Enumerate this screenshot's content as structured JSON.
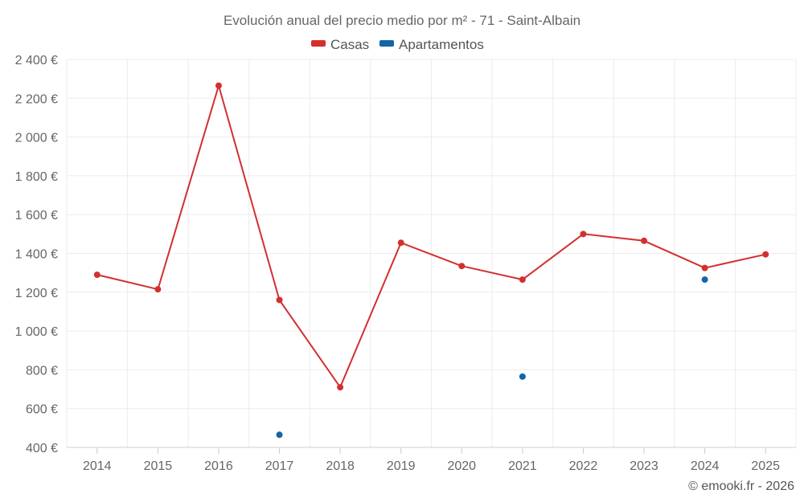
{
  "chart_data": {
    "type": "line",
    "title": "Evolución anual del precio medio por m² - 71 - Saint-Albain",
    "xlabel": "",
    "ylabel": "",
    "categories": [
      "2014",
      "2015",
      "2016",
      "2017",
      "2018",
      "2019",
      "2020",
      "2021",
      "2022",
      "2023",
      "2024",
      "2025"
    ],
    "ylim": [
      400,
      2400
    ],
    "yticks": [
      400,
      600,
      800,
      1000,
      1200,
      1400,
      1600,
      1800,
      2000,
      2200,
      2400
    ],
    "ytick_labels": [
      "400 €",
      "600 €",
      "800 €",
      "1 000 €",
      "1 200 €",
      "1 400 €",
      "1 600 €",
      "1 800 €",
      "2 000 €",
      "2 200 €",
      "2 400 €"
    ],
    "grid": true,
    "legend_position": "top-center",
    "series": [
      {
        "name": "Casas",
        "color": "#d32f2f",
        "line": true,
        "values": [
          1290,
          1215,
          2265,
          1160,
          710,
          1455,
          1335,
          1265,
          1500,
          1465,
          1325,
          1395
        ]
      },
      {
        "name": "Apartamentos",
        "color": "#1565a6",
        "line": false,
        "values": [
          null,
          null,
          null,
          465,
          null,
          null,
          null,
          765,
          null,
          null,
          1265,
          null
        ]
      }
    ]
  },
  "credit": "© emooki.fr - 2026"
}
